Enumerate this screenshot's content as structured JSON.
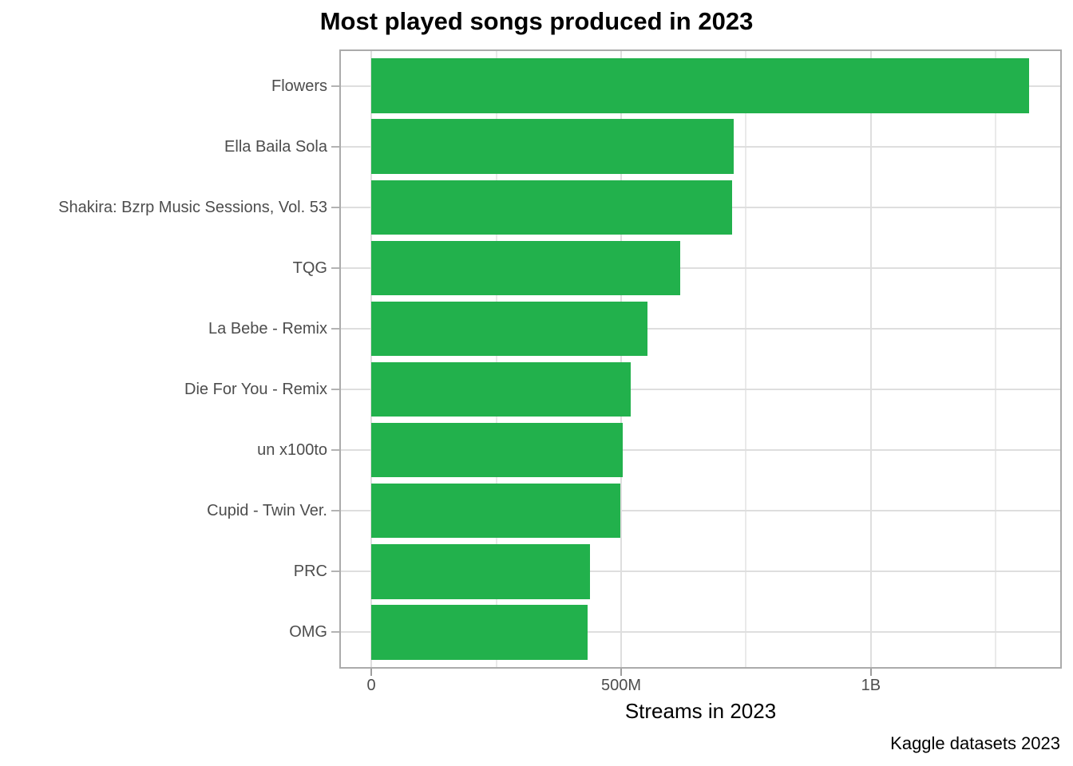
{
  "title": "Most played songs produced in 2023",
  "caption": "Kaggle datasets 2023",
  "colors": {
    "bar": "#22B14C",
    "grid_major": "#DEDEDE",
    "grid_minor": "#EAEAEA",
    "panel_border": "#ABABAB",
    "tick": "#9E9E9E",
    "axis_text": "#4D4D4D",
    "text": "#000000",
    "background": "#FFFFFF"
  },
  "chart_data": {
    "type": "bar",
    "orientation": "horizontal",
    "title": "Most played songs produced in 2023",
    "xlabel": "Streams in 2023",
    "ylabel": "",
    "categories": [
      "Flowers",
      "Ella Baila Sola",
      "Shakira: Bzrp Music Sessions, Vol. 53",
      "TQG",
      "La Bebe - Remix",
      "Die For You - Remix",
      "un x100to",
      "Cupid - Twin Ver.",
      "PRC",
      "OMG"
    ],
    "values_millions": [
      1317,
      725,
      722,
      619,
      553,
      520,
      504,
      498,
      438,
      433
    ],
    "x_ticks": [
      {
        "value": 0,
        "label": "0"
      },
      {
        "value": 500,
        "label": "500M"
      },
      {
        "value": 1000,
        "label": "1B"
      }
    ],
    "x_minor_ticks": [
      250,
      750,
      1250
    ],
    "xlim_millions": [
      -64,
      1382
    ],
    "bar_width_fraction": 0.9,
    "grid": true,
    "legend": false
  }
}
